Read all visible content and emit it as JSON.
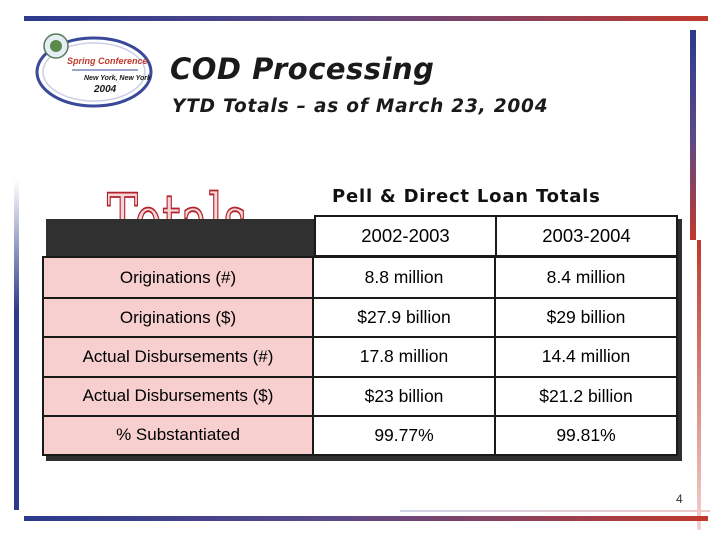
{
  "slide": {
    "title": "COD Processing",
    "subtitle": "YTD Totals – as of March 23, 2004",
    "page_number": "4"
  },
  "logo": {
    "line1": "Spring Conference",
    "line2": "New York, New York",
    "line3": "2004"
  },
  "word_art": "Totals",
  "table": {
    "heading": "Pell & Direct Loan Totals",
    "columns": [
      "2002-2003",
      "2003-2004"
    ],
    "rows": [
      {
        "label": "Originations (#)",
        "values": [
          "8.8 million",
          "8.4 million"
        ]
      },
      {
        "label": "Originations ($)",
        "values": [
          "$27.9 billion",
          "$29 billion"
        ]
      },
      {
        "label": "Actual Disbursements (#)",
        "values": [
          "17.8 million",
          "14.4 million"
        ]
      },
      {
        "label": "Actual Disbursements ($)",
        "values": [
          "$23 billion",
          "$21.2 billion"
        ]
      },
      {
        "label": "% Substantiated",
        "values": [
          "99.77%",
          "99.81%"
        ]
      }
    ]
  },
  "colors": {
    "accent_blue": "#2b3a8c",
    "accent_red": "#c0392b",
    "label_fill": "#f7cfcf",
    "word_art_fill": "#f6d7d7",
    "word_art_stroke": "#b2222e"
  }
}
